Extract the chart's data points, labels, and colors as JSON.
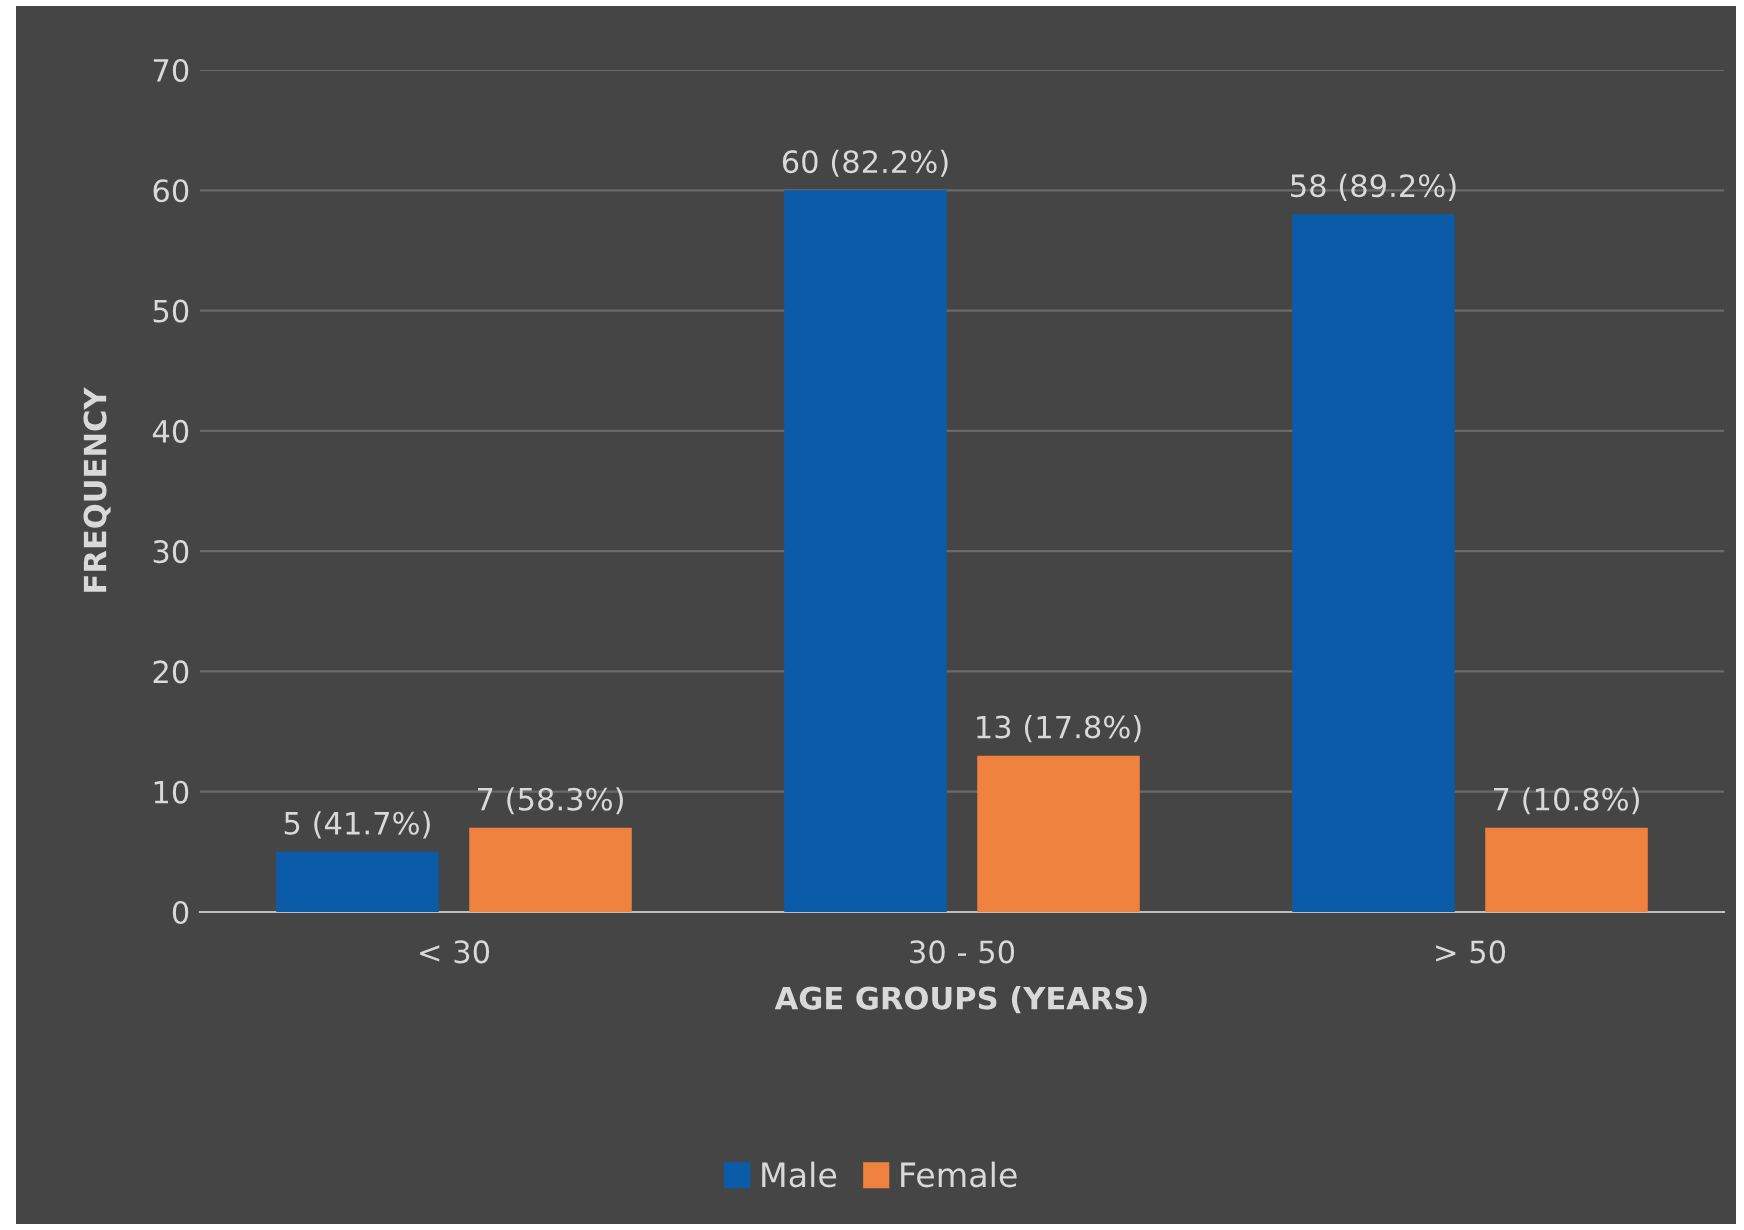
{
  "chart_data": {
    "type": "bar",
    "xlabel": "AGE GROUPS (YEARS)",
    "ylabel": "FREQUENCY",
    "categories": [
      "< 30",
      "30 - 50",
      "> 50"
    ],
    "series": [
      {
        "name": "Male",
        "color": "#0a5ca8",
        "values": [
          5,
          60,
          58
        ],
        "value_labels": [
          "5 (41.7%)",
          "60 (82.2%)",
          "58 (89.2%)"
        ]
      },
      {
        "name": "Female",
        "color": "#f0823f",
        "values": [
          7,
          13,
          7
        ],
        "value_labels": [
          "7 (58.3%)",
          "13 (17.8%)",
          "7 (10.8%)"
        ]
      }
    ],
    "ylim": [
      0,
      70
    ],
    "yticks": [
      0,
      10,
      20,
      30,
      40,
      50,
      60,
      70
    ],
    "grid": "y",
    "legend": "bottom"
  }
}
